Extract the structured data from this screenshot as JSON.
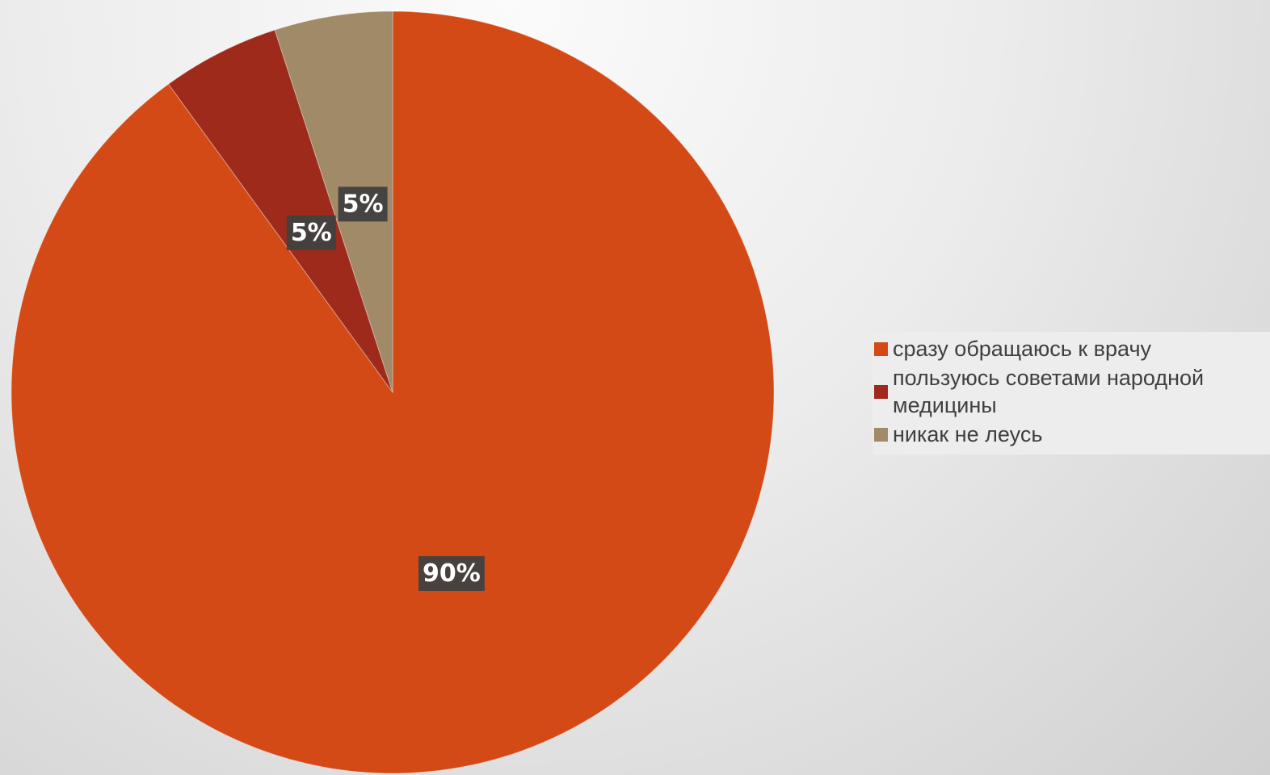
{
  "chart_data": {
    "type": "pie",
    "title": "",
    "legend_position": "right",
    "start_angle": "top, clockwise",
    "slices": [
      {
        "label": "сразу обращаюсь к врачу",
        "value": 90,
        "data_label": "90%",
        "color": "#d34a17"
      },
      {
        "label": "пользуюсь советами народной медицины",
        "value": 5,
        "data_label": "5%",
        "color": "#9e2a1c"
      },
      {
        "label": "никак не леусь",
        "value": 5,
        "data_label": "5%",
        "color": "#a18a68"
      }
    ]
  }
}
